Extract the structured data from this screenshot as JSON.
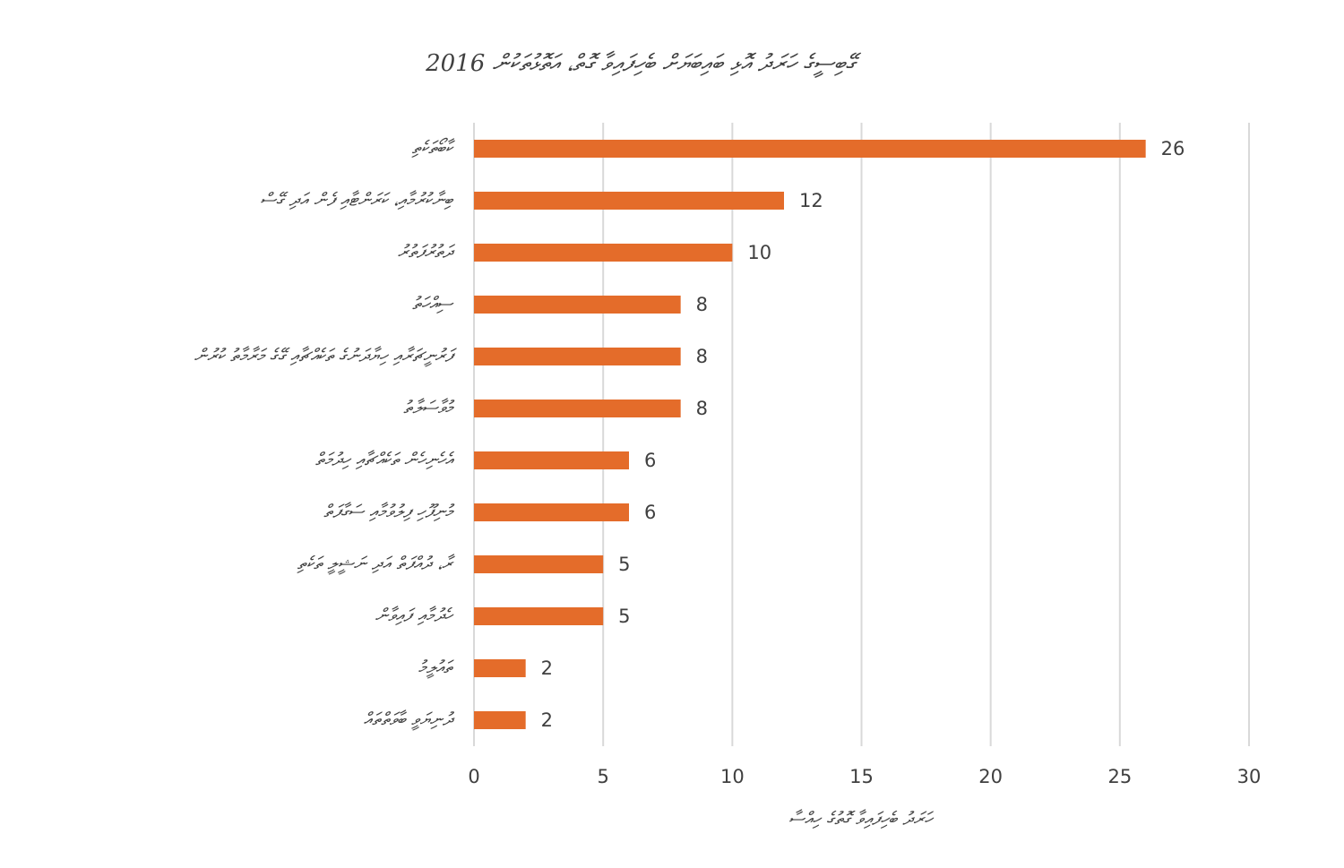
{
  "chart_data": {
    "type": "barh",
    "title": "ގޭބިސީގެ ހަރަދު އޮޅި ބައިބަޔަށް ބެހިފައިވާ ގޮތް، އަތޮޅުތަކުން 2016",
    "x_label": "ހަރަދު ބެހިފައިވާ ގޮތުގެ ހިއްސާ",
    "categories": [
      "ކާބޯތަކެތި",
      "ބިނާކުރުމާއި، ކަރަންޓާއި ފެން އަދި ގޭސް",
      "ދަތުރުފަތުރު",
      "ސިއްހަތު",
      "ފަރުނީޗަރާއި ހިޔާދަނުގެ ތަކެއްޗާއި ގޭގެ މަރާމާތު ކުރުން",
      "މުވާސަލާތު",
      "އެހެނިހެން ތަކެއްޗާއި ހިދުމަތް",
      "މުނިފޫހި ފިލުވުމާއި ސަގާފަތް",
      "ރާ، ދުއްފަތް އަދި ނަޝީލީ ތަކެތި",
      "ހެދުމާއި ފައިވާން",
      "ތައުލީމު",
      "ދުނިޔަވީ ބާވަތްތައް"
    ],
    "values": [
      26,
      12,
      10,
      8,
      8,
      8,
      6,
      6,
      5,
      5,
      2,
      2
    ],
    "color": "#e46c2a",
    "xlim": [
      0,
      30
    ],
    "xticks": [
      0,
      5,
      10,
      15,
      20,
      25,
      30
    ],
    "grid": true
  }
}
